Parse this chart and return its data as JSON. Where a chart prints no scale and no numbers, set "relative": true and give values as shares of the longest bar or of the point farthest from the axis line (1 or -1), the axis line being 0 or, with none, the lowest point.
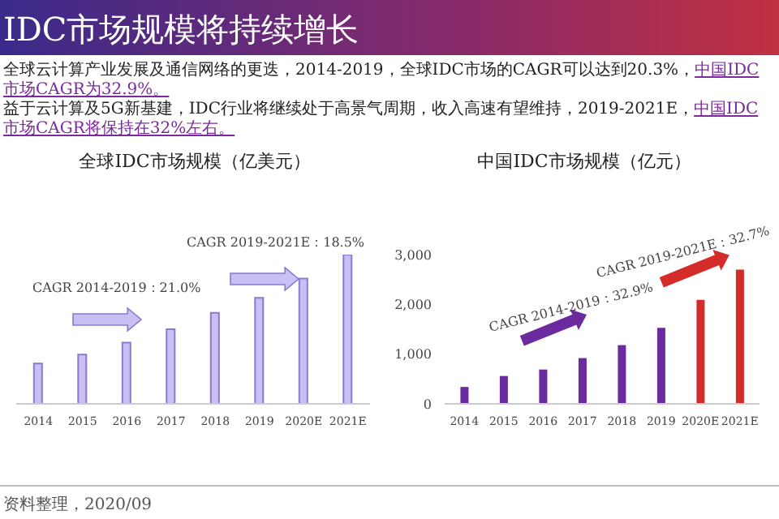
{
  "chart_data": [
    {
      "type": "other",
      "title": "IDC市场规模将持续增长",
      "annotations": [
        "全球云计算产业发展及通信网络的更迭，2014-2019，全球IDC市场的CAGR可以达到20.3%，",
        "中国IDC市场CAGR为32.9%。",
        "益于云计算及5G新基建，IDC行业将继续处于高景气周期，收入高速有望维持，2019-2021E，",
        "中国IDC市场CAGR将保持在32%左右。",
        "资料整理，2020/09"
      ]
    },
    {
      "type": "bar",
      "title": "全球IDC市场规模（亿美元）",
      "relative": true,
      "categories": [
        "2014",
        "2015",
        "2016",
        "2017",
        "2018",
        "2019",
        "2020E",
        "2021E"
      ],
      "values": [
        0.27,
        0.33,
        0.41,
        0.5,
        0.61,
        0.71,
        0.84,
        1
      ],
      "colors": [
        "#c9bff2",
        "#c9bff2",
        "#c9bff2",
        "#c9bff2",
        "#c9bff2",
        "#c9bff2",
        "#c9bff2",
        "#c9bff2"
      ],
      "annotations": [
        "CAGR 2014-2019：21.0%",
        "CAGR 2019-2021E：18.5%"
      ]
    },
    {
      "type": "bar",
      "title": "中国IDC市场规模（亿元）",
      "categories": [
        "2014",
        "2015",
        "2016",
        "2017",
        "2018",
        "2019",
        "2020E",
        "2021E"
      ],
      "values": [
        340,
        560,
        690,
        920,
        1180,
        1530,
        2090,
        2700
      ],
      "colors": [
        "#6b2a9e",
        "#6b2a9e",
        "#6b2a9e",
        "#6b2a9e",
        "#6b2a9e",
        "#6b2a9e",
        "#d42b2b",
        "#d42b2b"
      ],
      "ylim": [
        0,
        3000
      ],
      "yticks": [
        {
          "value": 0,
          "label": "0"
        },
        {
          "value": 1000,
          "label": "1,000"
        },
        {
          "value": 2000,
          "label": "2,000"
        },
        {
          "value": 3000,
          "label": "3,000"
        }
      ],
      "annotations": [
        "CAGR 2014-2019：32.9%",
        "CAGR 2019-2021E：32.7%"
      ]
    }
  ]
}
